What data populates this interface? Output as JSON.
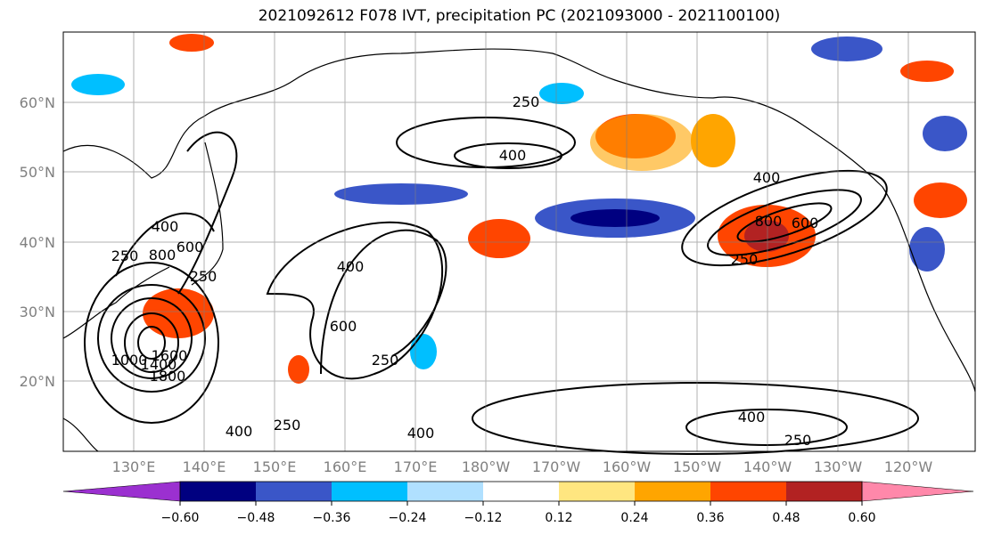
{
  "title": "2021092612 F078 IVT, precipitation PC (2021093000 - 2021100100)",
  "longitude_labels": [
    "130°E",
    "140°E",
    "150°E",
    "160°E",
    "170°E",
    "180°W",
    "170°W",
    "160°W",
    "150°W",
    "140°W",
    "130°W",
    "120°W"
  ],
  "latitude_labels": [
    "60°N",
    "50°N",
    "40°N",
    "30°N",
    "20°N"
  ],
  "contour_labels": [
    "250",
    "400",
    "250",
    "400",
    "600",
    "400",
    "250",
    "400",
    "250",
    "400",
    "800",
    "600",
    "250",
    "250",
    "400",
    "800",
    "600",
    "400",
    "250",
    "1000",
    "1400",
    "1600",
    "1800"
  ],
  "colorbar": {
    "tick_labels": [
      "−0.60",
      "−0.48",
      "−0.36",
      "−0.24",
      "−0.12",
      "0.12",
      "0.24",
      "0.36",
      "0.48",
      "0.60"
    ],
    "colors": [
      "#9b30d0",
      "#000080",
      "#3a56c8",
      "#00bfff",
      "#b0e0ff",
      "#ffffff",
      "#ffe680",
      "#ffa500",
      "#ff4500",
      "#b22222",
      "#ff88aa"
    ]
  }
}
